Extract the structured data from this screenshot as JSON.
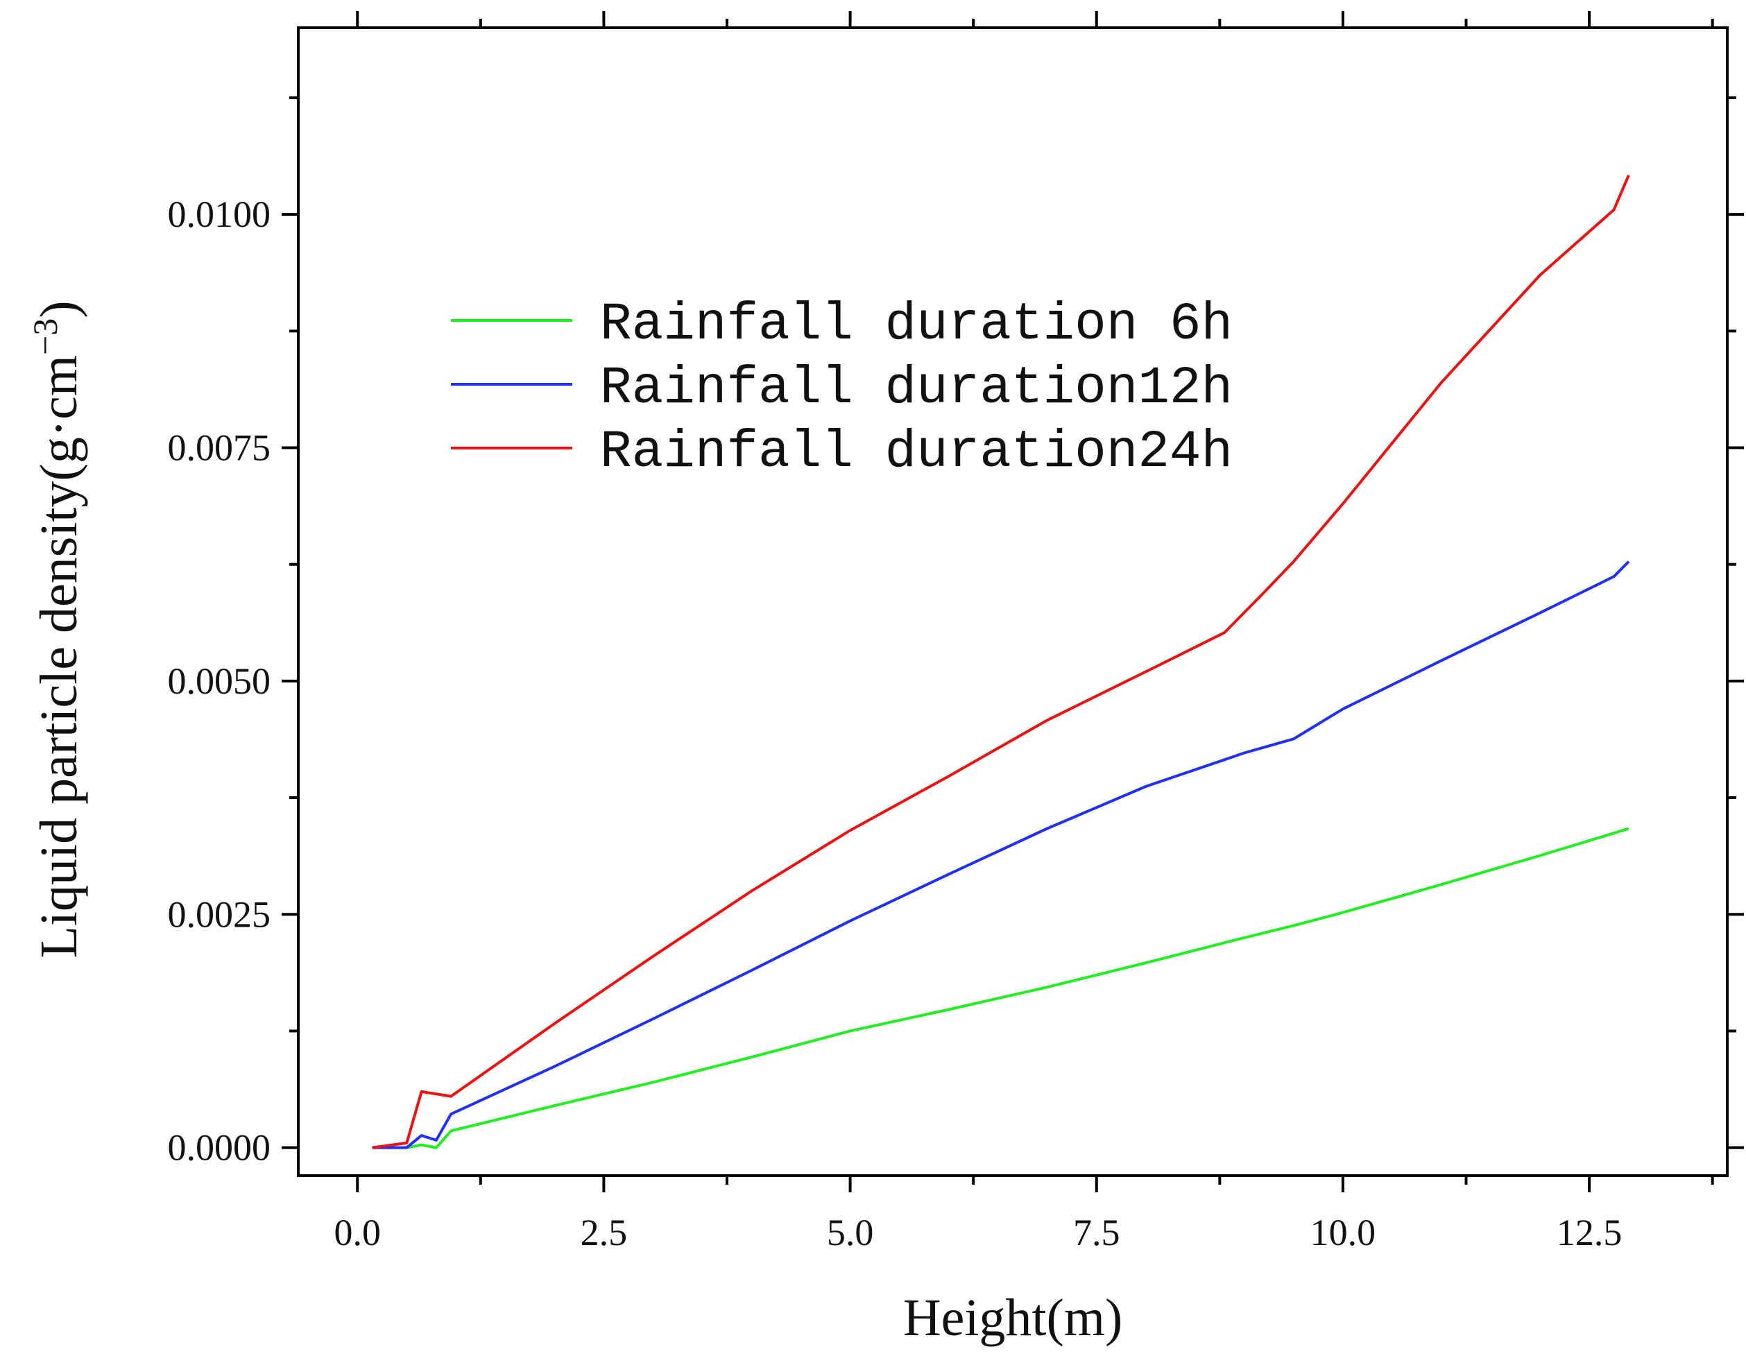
{
  "chart_data": {
    "type": "line",
    "title": "",
    "xlabel": "Height(m)",
    "ylabel_main": "Liquid particle density(g·cm",
    "ylabel_exp": "−3",
    "ylabel_close": ")",
    "xlim": [
      -0.6,
      13.9
    ],
    "ylim": [
      -0.0003,
      0.012
    ],
    "x_ticks": [
      0.0,
      2.5,
      5.0,
      7.5,
      10.0,
      12.5
    ],
    "x_tick_labels": [
      "0.0",
      "2.5",
      "5.0",
      "7.5",
      "10.0",
      "12.5"
    ],
    "y_ticks": [
      0.0,
      0.0025,
      0.005,
      0.0075,
      0.01
    ],
    "y_tick_labels": [
      "0.0000",
      "0.0025",
      "0.0050",
      "0.0075",
      "0.0100"
    ],
    "legend_position": "upper-left",
    "series": [
      {
        "name": "Rainfall duration 6h",
        "color": "#22ee22",
        "x": [
          0.15,
          0.5,
          0.65,
          0.8,
          0.95,
          2.0,
          3.0,
          4.0,
          5.0,
          6.0,
          7.0,
          8.0,
          9.0,
          9.5,
          10.0,
          11.0,
          12.0,
          12.75,
          12.9
        ],
        "y": [
          0.0,
          0.0,
          3e-05,
          0.0,
          0.00018,
          0.00045,
          0.0007,
          0.00097,
          0.00125,
          0.00148,
          0.00172,
          0.00198,
          0.00225,
          0.00238,
          0.00252,
          0.00282,
          0.00313,
          0.00337,
          0.00342
        ]
      },
      {
        "name": "Rainfall duration12h",
        "color": "#1f2fff",
        "x": [
          0.15,
          0.5,
          0.65,
          0.8,
          0.95,
          2.0,
          3.0,
          4.0,
          5.0,
          6.0,
          7.0,
          8.0,
          9.0,
          9.5,
          10.0,
          11.0,
          12.0,
          12.75,
          12.9
        ],
        "y": [
          0.0,
          0.0,
          0.00013,
          8e-05,
          0.00036,
          0.00087,
          0.00138,
          0.0019,
          0.00243,
          0.00293,
          0.00342,
          0.00387,
          0.00423,
          0.00438,
          0.0047,
          0.00522,
          0.00573,
          0.00612,
          0.00628
        ]
      },
      {
        "name": "Rainfall duration24h",
        "color": "#ee1111",
        "x": [
          0.15,
          0.5,
          0.65,
          0.95,
          2.0,
          3.0,
          4.0,
          5.0,
          6.0,
          7.0,
          8.0,
          8.8,
          9.2,
          9.5,
          10.0,
          11.0,
          12.0,
          12.75,
          12.9
        ],
        "y": [
          0.0,
          5e-05,
          0.0006,
          0.00055,
          0.00133,
          0.00205,
          0.00275,
          0.0034,
          0.00398,
          0.00458,
          0.0051,
          0.00552,
          0.00595,
          0.00628,
          0.0069,
          0.0082,
          0.00935,
          0.01005,
          0.01042
        ]
      }
    ]
  }
}
